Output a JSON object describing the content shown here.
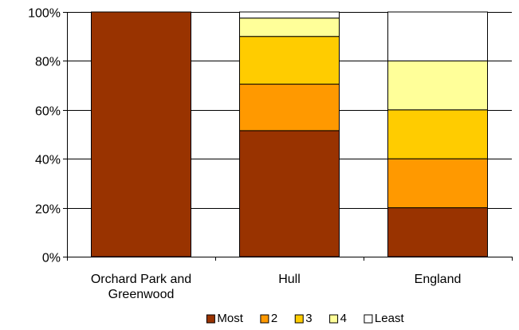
{
  "chart_data": {
    "type": "bar",
    "stacked": true,
    "percent_scale": true,
    "categories": [
      "Orchard Park and Greenwood",
      "Hull",
      "England"
    ],
    "category_label_lines": [
      [
        "Orchard Park and",
        "Greenwood"
      ],
      [
        "Hull"
      ],
      [
        "England"
      ]
    ],
    "series": [
      {
        "name": "Most",
        "color": "#993300",
        "values": [
          100,
          51.5,
          20
        ]
      },
      {
        "name": "2",
        "color": "#ff9900",
        "values": [
          0,
          19,
          20
        ]
      },
      {
        "name": "3",
        "color": "#ffcc00",
        "values": [
          0,
          19.5,
          20
        ]
      },
      {
        "name": "4",
        "color": "#ffff99",
        "values": [
          0,
          7.5,
          20
        ]
      },
      {
        "name": "Least",
        "color": "#ffffff",
        "values": [
          0,
          2.5,
          20
        ]
      }
    ],
    "ylim": [
      0,
      100
    ],
    "y_ticks": [
      0,
      20,
      40,
      60,
      80,
      100
    ],
    "y_tick_labels": [
      "0%",
      "20%",
      "40%",
      "60%",
      "80%",
      "100%"
    ],
    "grid": true,
    "legend_position": "bottom",
    "title": "",
    "xlabel": "",
    "ylabel": ""
  }
}
